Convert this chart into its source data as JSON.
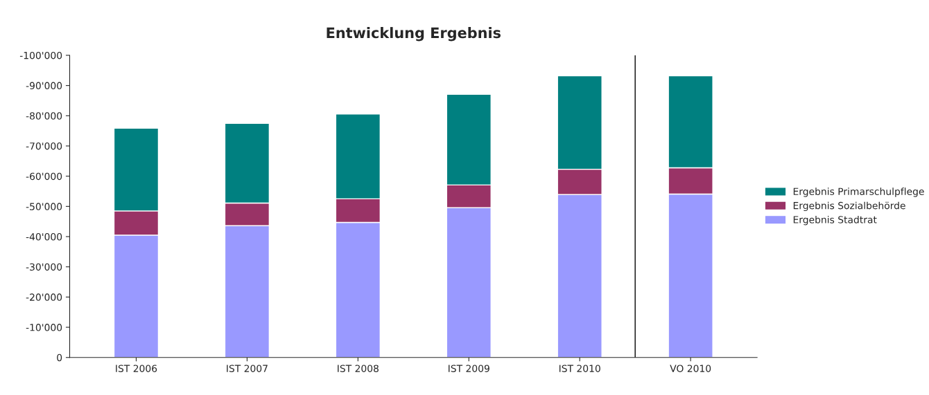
{
  "chart_data": {
    "type": "bar",
    "title": "Entwicklung Ergebnis",
    "stacked": true,
    "categories": [
      "IST 2006",
      "IST 2007",
      "IST 2008",
      "IST 2009",
      "IST 2010",
      "VO 2010"
    ],
    "series": [
      {
        "name": "Ergebnis Stadtrat",
        "color": "#9999ff",
        "values": [
          -40500,
          -43600,
          -44700,
          -49600,
          -53900,
          -54100
        ]
      },
      {
        "name": "Ergebnis Sozialbehörde",
        "color": "#993366",
        "values": [
          -8000,
          -7500,
          -7800,
          -7500,
          -8400,
          -8700
        ]
      },
      {
        "name": "Ergebnis Primarschulpflege",
        "color": "#008080",
        "values": [
          -27400,
          -26400,
          -28100,
          -30000,
          -30900,
          -30400
        ]
      }
    ],
    "ylim": [
      0,
      -100000
    ],
    "yticks": [
      0,
      {
        "value": -10000,
        "label": "-10'000"
      },
      {
        "value": -20000,
        "label": "-20'000"
      },
      {
        "value": -30000,
        "label": "-30'000"
      },
      {
        "value": -40000,
        "label": "-40'000"
      },
      {
        "value": -50000,
        "label": "-50'000"
      },
      {
        "value": -60000,
        "label": "-60'000"
      },
      {
        "value": -70000,
        "label": "-70'000"
      },
      {
        "value": -80000,
        "label": "-80'000"
      },
      {
        "value": -90000,
        "label": "-90'000"
      },
      {
        "value": -100000,
        "label": "-100'000"
      }
    ],
    "grid": false,
    "legend": "right"
  }
}
